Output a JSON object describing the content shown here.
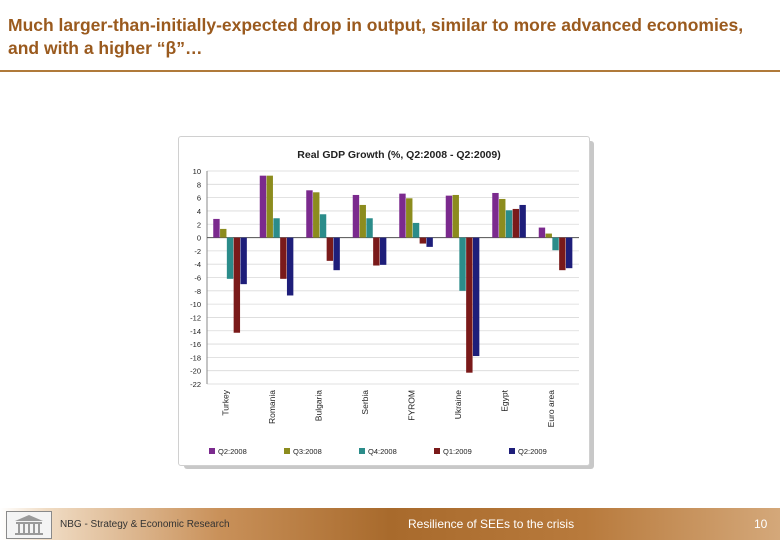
{
  "slide": {
    "title": "Much larger-than-initially-expected drop in output, similar to more advanced economies, and with a higher “β”…"
  },
  "footer": {
    "left_text": "NBG - Strategy & Economic Research",
    "center_text": "Resilience of SEEs to the crisis",
    "page_number": "10"
  },
  "chart_data": {
    "type": "bar",
    "title": "Real GDP Growth (%, Q2:2008 - Q2:2009)",
    "xlabel": "",
    "ylabel": "",
    "ylim": [
      -22,
      10
    ],
    "yticks": [
      10,
      8,
      6,
      4,
      2,
      0,
      -2,
      -4,
      -6,
      -8,
      -10,
      -12,
      -14,
      -16,
      -18,
      -20,
      -22
    ],
    "grid": true,
    "legend_position": "bottom",
    "categories": [
      "Turkey",
      "Romania",
      "Bulgaria",
      "Serbia",
      "FYROM",
      "Ukraine",
      "Egypt",
      "Euro area"
    ],
    "series": [
      {
        "name": "Q2:2008",
        "color": "#7b2a8e",
        "values": [
          2.8,
          9.3,
          7.1,
          6.4,
          6.6,
          6.3,
          6.7,
          1.5
        ]
      },
      {
        "name": "Q3:2008",
        "color": "#8c8c1e",
        "values": [
          1.3,
          9.3,
          6.8,
          4.9,
          5.9,
          6.4,
          5.8,
          0.6
        ]
      },
      {
        "name": "Q4:2008",
        "color": "#2b8c8a",
        "values": [
          -6.2,
          2.9,
          3.5,
          2.9,
          2.2,
          -8.0,
          4.1,
          -1.9
        ]
      },
      {
        "name": "Q1:2009",
        "color": "#7a1a1a",
        "values": [
          -14.3,
          -6.2,
          -3.5,
          -4.2,
          -0.9,
          -20.3,
          4.3,
          -4.9
        ]
      },
      {
        "name": "Q2:2009",
        "color": "#1e1e7a",
        "values": [
          -7.0,
          -8.7,
          -4.9,
          -4.1,
          -1.4,
          -17.8,
          4.9,
          -4.6
        ]
      }
    ]
  }
}
